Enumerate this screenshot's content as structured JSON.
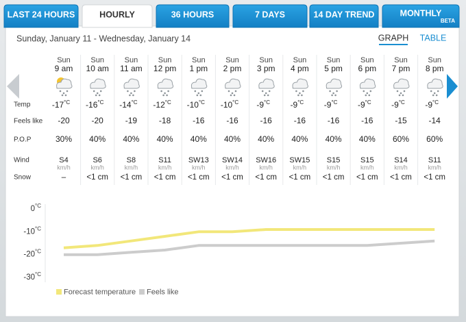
{
  "tabs": [
    {
      "label": "LAST 24 HOURS"
    },
    {
      "label": "HOURLY",
      "active": true
    },
    {
      "label": "36 HOURS"
    },
    {
      "label": "7 DAYS"
    },
    {
      "label": "14 DAY TREND"
    },
    {
      "label": "MONTHLY",
      "badge": "BETA"
    }
  ],
  "date_range": "Sunday, January 11 - Wednesday, January 14",
  "views": [
    "GRAPH",
    "TABLE"
  ],
  "row_labels": [
    "Temp",
    "Feels like",
    "P.O.P",
    "Wind",
    "Snow"
  ],
  "temp_unit": "°C",
  "wind_unit": "km/h",
  "hours": [
    {
      "day": "Sun",
      "time": "9 am",
      "temp": -17,
      "feels_like": -20,
      "pop": "30%",
      "wind": "S4",
      "snow": "–"
    },
    {
      "day": "Sun",
      "time": "10 am",
      "temp": -16,
      "feels_like": -20,
      "pop": "40%",
      "wind": "S6",
      "snow": "<1 cm"
    },
    {
      "day": "Sun",
      "time": "11 am",
      "temp": -14,
      "feels_like": -19,
      "pop": "40%",
      "wind": "S8",
      "snow": "<1 cm"
    },
    {
      "day": "Sun",
      "time": "12 pm",
      "temp": -12,
      "feels_like": -18,
      "pop": "40%",
      "wind": "S11",
      "snow": "<1 cm"
    },
    {
      "day": "Sun",
      "time": "1 pm",
      "temp": -10,
      "feels_like": -16,
      "pop": "40%",
      "wind": "SW13",
      "snow": "<1 cm"
    },
    {
      "day": "Sun",
      "time": "2 pm",
      "temp": -10,
      "feels_like": -16,
      "pop": "40%",
      "wind": "SW14",
      "snow": "<1 cm"
    },
    {
      "day": "Sun",
      "time": "3 pm",
      "temp": -9,
      "feels_like": -16,
      "pop": "40%",
      "wind": "SW16",
      "snow": "<1 cm"
    },
    {
      "day": "Sun",
      "time": "4 pm",
      "temp": -9,
      "feels_like": -16,
      "pop": "40%",
      "wind": "SW15",
      "snow": "<1 cm"
    },
    {
      "day": "Sun",
      "time": "5 pm",
      "temp": -9,
      "feels_like": -16,
      "pop": "40%",
      "wind": "S15",
      "snow": "<1 cm"
    },
    {
      "day": "Sun",
      "time": "6 pm",
      "temp": -9,
      "feels_like": -16,
      "pop": "40%",
      "wind": "S15",
      "snow": "<1 cm"
    },
    {
      "day": "Sun",
      "time": "7 pm",
      "temp": -9,
      "feels_like": -15,
      "pop": "60%",
      "wind": "S14",
      "snow": "<1 cm"
    },
    {
      "day": "Sun",
      "time": "8 pm",
      "temp": -9,
      "feels_like": -14,
      "pop": "60%",
      "wind": "S11",
      "snow": "<1 cm"
    }
  ],
  "chart": {
    "type": "line",
    "ylim": [
      -30,
      0
    ],
    "yticks": [
      0,
      -10,
      -20,
      -30
    ],
    "series": [
      {
        "name": "Forecast temperature",
        "color": "#f2e77a"
      },
      {
        "name": "Feels like",
        "color": "#cccccc"
      }
    ]
  }
}
